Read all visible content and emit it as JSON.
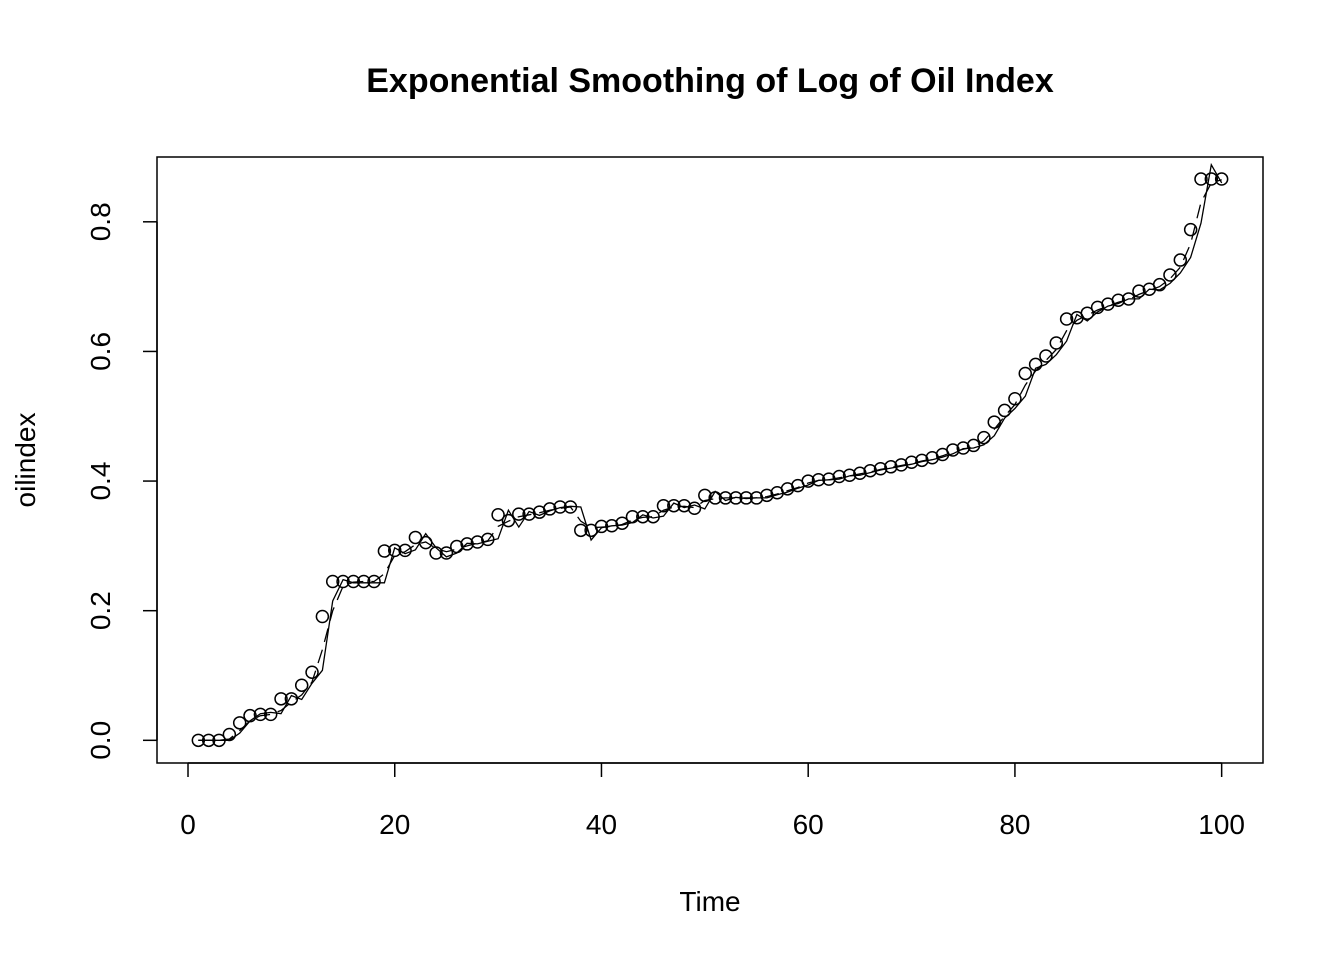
{
  "chart_data": {
    "type": "line",
    "title": "Exponential Smoothing of Log of Oil Index",
    "xlabel": "Time",
    "ylabel": "oilindex",
    "xlim": [
      -3,
      104
    ],
    "ylim": [
      -0.035,
      0.9
    ],
    "x_ticks": [
      0,
      20,
      40,
      60,
      80,
      100
    ],
    "y_ticks": [
      0.0,
      0.2,
      0.4,
      0.6,
      0.8
    ],
    "x_tick_labels": [
      "0",
      "20",
      "40",
      "60",
      "80",
      "100"
    ],
    "y_tick_labels": [
      "0.0",
      "0.2",
      "0.4",
      "0.6",
      "0.8"
    ],
    "grid": false,
    "legend": "none",
    "series": [
      {
        "style": "points",
        "marker": "open-circle",
        "x": [
          1,
          2,
          3,
          4,
          5,
          6,
          7,
          8,
          9,
          10,
          11,
          12,
          13,
          14,
          15,
          16,
          17,
          18,
          19,
          20,
          21,
          22,
          23,
          24,
          25,
          26,
          27,
          28,
          29,
          30,
          31,
          32,
          33,
          34,
          35,
          36,
          37,
          38,
          39,
          40,
          41,
          42,
          43,
          44,
          45,
          46,
          47,
          48,
          49,
          50,
          51,
          52,
          53,
          54,
          55,
          56,
          57,
          58,
          59,
          60,
          61,
          62,
          63,
          64,
          65,
          66,
          67,
          68,
          69,
          70,
          71,
          72,
          73,
          74,
          75,
          76,
          77,
          78,
          79,
          80,
          81,
          82,
          83,
          84,
          85,
          86,
          87,
          88,
          89,
          90,
          91,
          92,
          93,
          94,
          95,
          96,
          97,
          98,
          99,
          100
        ],
        "values": [
          0.0,
          0.0,
          0.0,
          0.009,
          0.027,
          0.038,
          0.04,
          0.04,
          0.064,
          0.064,
          0.085,
          0.105,
          0.191,
          0.245,
          0.245,
          0.245,
          0.245,
          0.245,
          0.292,
          0.293,
          0.293,
          0.313,
          0.305,
          0.289,
          0.289,
          0.299,
          0.303,
          0.306,
          0.31,
          0.348,
          0.339,
          0.349,
          0.349,
          0.352,
          0.357,
          0.36,
          0.36,
          0.324,
          0.324,
          0.33,
          0.331,
          0.335,
          0.345,
          0.345,
          0.345,
          0.362,
          0.362,
          0.362,
          0.358,
          0.378,
          0.374,
          0.374,
          0.374,
          0.374,
          0.374,
          0.378,
          0.382,
          0.388,
          0.393,
          0.4,
          0.402,
          0.403,
          0.407,
          0.409,
          0.412,
          0.416,
          0.419,
          0.422,
          0.425,
          0.429,
          0.432,
          0.436,
          0.441,
          0.448,
          0.451,
          0.455,
          0.467,
          0.491,
          0.509,
          0.527,
          0.566,
          0.58,
          0.593,
          0.613,
          0.65,
          0.652,
          0.659,
          0.668,
          0.673,
          0.679,
          0.681,
          0.693,
          0.696,
          0.703,
          0.718,
          0.741,
          0.788,
          0.866,
          0.866,
          0.866
        ]
      },
      {
        "style": "solid-line",
        "x": [
          1,
          2,
          3,
          4,
          5,
          6,
          7,
          8,
          9,
          10,
          11,
          12,
          13,
          14,
          15,
          16,
          17,
          18,
          19,
          20,
          21,
          22,
          23,
          24,
          25,
          26,
          27,
          28,
          29,
          30,
          31,
          32,
          33,
          34,
          35,
          36,
          37,
          38,
          39,
          40,
          41,
          42,
          43,
          44,
          45,
          46,
          47,
          48,
          49,
          50,
          51,
          52,
          53,
          54,
          55,
          56,
          57,
          58,
          59,
          60,
          61,
          62,
          63,
          64,
          65,
          66,
          67,
          68,
          69,
          70,
          71,
          72,
          73,
          74,
          75,
          76,
          77,
          78,
          79,
          80,
          81,
          82,
          83,
          84,
          85,
          86,
          87,
          88,
          89,
          90,
          91,
          92,
          93,
          94,
          95,
          96,
          97,
          98,
          99,
          100
        ],
        "values": [
          0.0,
          0.0,
          0.0,
          0.0,
          0.011,
          0.03,
          0.041,
          0.043,
          0.041,
          0.069,
          0.063,
          0.088,
          0.108,
          0.215,
          0.248,
          0.243,
          0.243,
          0.243,
          0.243,
          0.297,
          0.288,
          0.294,
          0.319,
          0.297,
          0.283,
          0.289,
          0.304,
          0.303,
          0.307,
          0.311,
          0.355,
          0.329,
          0.353,
          0.347,
          0.354,
          0.359,
          0.361,
          0.36,
          0.309,
          0.328,
          0.331,
          0.332,
          0.336,
          0.348,
          0.343,
          0.346,
          0.366,
          0.359,
          0.363,
          0.357,
          0.384,
          0.37,
          0.375,
          0.373,
          0.374,
          0.374,
          0.379,
          0.383,
          0.389,
          0.394,
          0.401,
          0.402,
          0.403,
          0.408,
          0.409,
          0.413,
          0.417,
          0.42,
          0.423,
          0.426,
          0.43,
          0.433,
          0.437,
          0.442,
          0.45,
          0.451,
          0.456,
          0.47,
          0.497,
          0.512,
          0.531,
          0.574,
          0.58,
          0.595,
          0.616,
          0.657,
          0.647,
          0.661,
          0.67,
          0.674,
          0.681,
          0.681,
          0.696,
          0.695,
          0.705,
          0.721,
          0.745,
          0.798,
          0.888,
          0.86
        ]
      },
      {
        "style": "dashed-line",
        "x": [
          1,
          2,
          3,
          4,
          5,
          6,
          7,
          8,
          9,
          10,
          11,
          12,
          13,
          14,
          15,
          16,
          17,
          18,
          19,
          20,
          21,
          22,
          23,
          24,
          25,
          26,
          27,
          28,
          29,
          30,
          31,
          32,
          33,
          34,
          35,
          36,
          37,
          38,
          39,
          40,
          41,
          42,
          43,
          44,
          45,
          46,
          47,
          48,
          49,
          50,
          51,
          52,
          53,
          54,
          55,
          56,
          57,
          58,
          59,
          60,
          61,
          62,
          63,
          64,
          65,
          66,
          67,
          68,
          69,
          70,
          71,
          72,
          73,
          74,
          75,
          76,
          77,
          78,
          79,
          80,
          81,
          82,
          83,
          84,
          85,
          86,
          87,
          88,
          89,
          90,
          91,
          92,
          93,
          94,
          95,
          96,
          97,
          98,
          99,
          100
        ],
        "values": [
          0.0,
          0.0,
          0.0,
          0.002,
          0.015,
          0.03,
          0.038,
          0.04,
          0.046,
          0.059,
          0.07,
          0.09,
          0.14,
          0.2,
          0.238,
          0.244,
          0.245,
          0.245,
          0.257,
          0.285,
          0.291,
          0.302,
          0.306,
          0.296,
          0.291,
          0.295,
          0.3,
          0.304,
          0.308,
          0.33,
          0.338,
          0.345,
          0.348,
          0.351,
          0.355,
          0.358,
          0.36,
          0.338,
          0.328,
          0.329,
          0.33,
          0.333,
          0.34,
          0.344,
          0.345,
          0.355,
          0.36,
          0.361,
          0.359,
          0.37,
          0.373,
          0.374,
          0.374,
          0.374,
          0.374,
          0.376,
          0.38,
          0.385,
          0.39,
          0.397,
          0.401,
          0.402,
          0.405,
          0.408,
          0.411,
          0.414,
          0.418,
          0.421,
          0.424,
          0.427,
          0.431,
          0.434,
          0.439,
          0.445,
          0.449,
          0.453,
          0.462,
          0.48,
          0.5,
          0.518,
          0.548,
          0.57,
          0.586,
          0.603,
          0.632,
          0.648,
          0.656,
          0.664,
          0.67,
          0.676,
          0.68,
          0.688,
          0.694,
          0.7,
          0.712,
          0.73,
          0.766,
          0.83,
          0.86,
          0.865
        ]
      }
    ]
  }
}
